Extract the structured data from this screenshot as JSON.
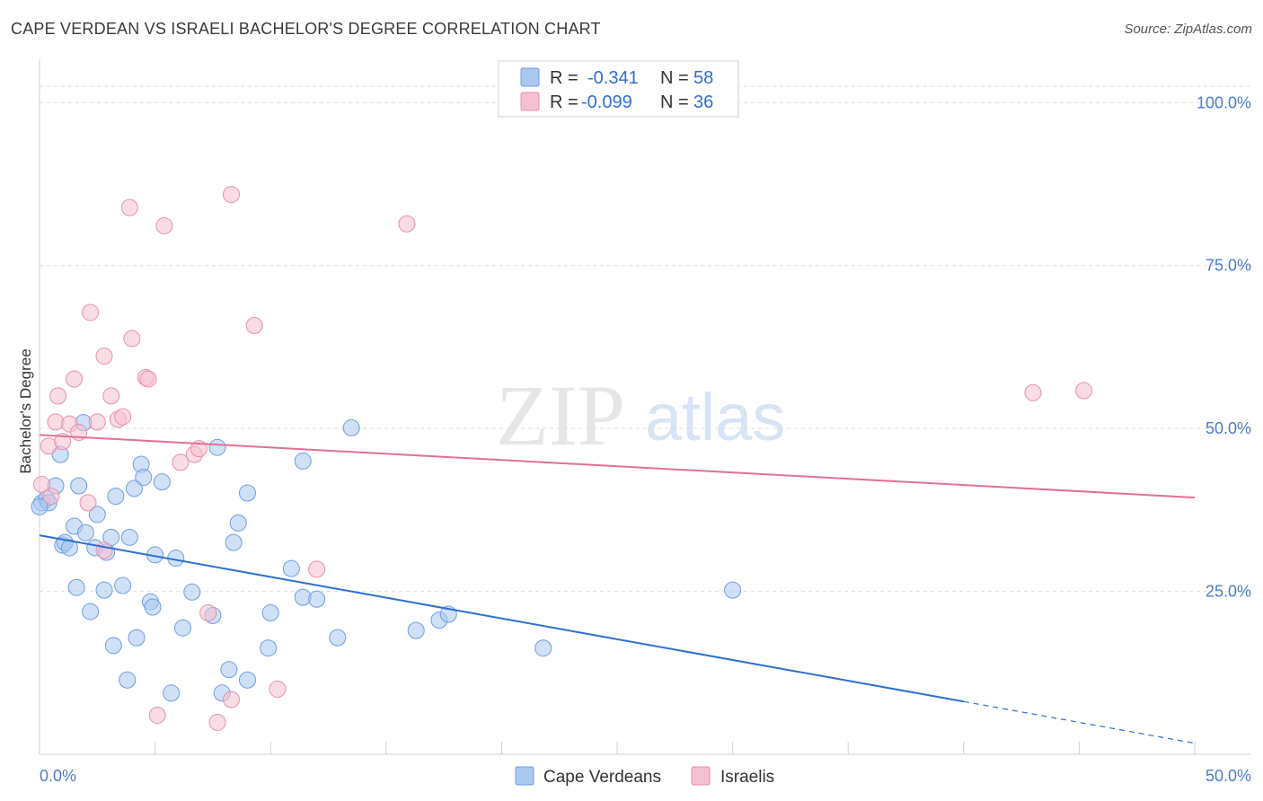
{
  "header": {
    "title": "CAPE VERDEAN VS ISRAELI BACHELOR'S DEGREE CORRELATION CHART",
    "source": "Source: ZipAtlas.com"
  },
  "watermark": {
    "zip": "ZIP",
    "atlas": "atlas"
  },
  "legend": {
    "rows": [
      {
        "r_label": "R =",
        "r_value": "-0.341",
        "n_label": "N =",
        "n_value": "58",
        "color": "#a9c8f0",
        "border": "#6f9de0"
      },
      {
        "r_label": "R =",
        "r_value": "-0.099",
        "n_label": "N =",
        "n_value": "36",
        "color": "#f6c0d0",
        "border": "#e890aa"
      }
    ]
  },
  "bottom_legend": {
    "items": [
      {
        "label": "Cape Verdeans",
        "color": "#a9c8f0",
        "border": "#6f9de0"
      },
      {
        "label": "Israelis",
        "color": "#f6c0d0",
        "border": "#e890aa"
      }
    ]
  },
  "chart_data": {
    "type": "scatter",
    "title": "CAPE VERDEAN VS ISRAELI BACHELOR'S DEGREE CORRELATION CHART",
    "xlabel": "",
    "ylabel": "Bachelor's Degree",
    "xlim": [
      0,
      50
    ],
    "ylim": [
      0,
      105
    ],
    "x_tick_labels": [
      "0.0%",
      "50.0%"
    ],
    "y_ticks": [
      25,
      50,
      75,
      100
    ],
    "y_tick_labels": [
      "25.0%",
      "50.0%",
      "75.0%",
      "100.0%"
    ],
    "grid": "horizontal dashed",
    "series": [
      {
        "name": "Cape Verdeans",
        "color": "#6f9de0",
        "fill": "#a9c8f0",
        "trend": {
          "x0": 0,
          "y0": 33.6,
          "x1": 40,
          "y1": 8.1,
          "dashed_to_x": 50,
          "dashed_to_y": 1.7,
          "color": "#2d6fd1"
        },
        "points": [
          [
            0.1,
            38.6
          ],
          [
            0.3,
            39.2
          ],
          [
            0.4,
            38.6
          ],
          [
            0.7,
            41.2
          ],
          [
            0.9,
            46.0
          ],
          [
            1.0,
            32.1
          ],
          [
            1.1,
            32.5
          ],
          [
            1.3,
            31.7
          ],
          [
            1.5,
            35.0
          ],
          [
            1.6,
            25.6
          ],
          [
            1.7,
            41.2
          ],
          [
            1.9,
            50.9
          ],
          [
            2.0,
            34.0
          ],
          [
            2.2,
            21.9
          ],
          [
            2.4,
            31.7
          ],
          [
            2.5,
            36.8
          ],
          [
            2.8,
            25.2
          ],
          [
            2.9,
            31.0
          ],
          [
            3.1,
            33.3
          ],
          [
            3.2,
            16.7
          ],
          [
            3.3,
            39.6
          ],
          [
            3.6,
            25.9
          ],
          [
            3.8,
            11.4
          ],
          [
            3.9,
            33.3
          ],
          [
            4.1,
            40.8
          ],
          [
            4.2,
            17.9
          ],
          [
            4.4,
            44.5
          ],
          [
            4.5,
            42.5
          ],
          [
            4.8,
            23.4
          ],
          [
            4.9,
            22.6
          ],
          [
            5.0,
            30.6
          ],
          [
            5.3,
            41.8
          ],
          [
            5.7,
            9.4
          ],
          [
            5.9,
            30.1
          ],
          [
            6.2,
            19.4
          ],
          [
            6.6,
            24.9
          ],
          [
            7.5,
            21.3
          ],
          [
            7.7,
            47.1
          ],
          [
            7.9,
            9.4
          ],
          [
            8.2,
            13.0
          ],
          [
            8.4,
            32.5
          ],
          [
            8.6,
            35.5
          ],
          [
            9.0,
            40.1
          ],
          [
            9.0,
            11.4
          ],
          [
            9.9,
            16.3
          ],
          [
            10.0,
            21.7
          ],
          [
            10.9,
            28.5
          ],
          [
            11.4,
            45.0
          ],
          [
            11.4,
            24.1
          ],
          [
            12.0,
            23.8
          ],
          [
            12.9,
            17.9
          ],
          [
            13.5,
            50.1
          ],
          [
            16.3,
            19.0
          ],
          [
            17.3,
            20.6
          ],
          [
            17.7,
            21.5
          ],
          [
            21.8,
            16.3
          ],
          [
            30.0,
            25.2
          ],
          [
            0.0,
            38.0
          ]
        ]
      },
      {
        "name": "Israelis",
        "color": "#e890aa",
        "fill": "#f6c0d0",
        "trend": {
          "x0": 0,
          "y0": 49.0,
          "x1": 50,
          "y1": 39.4,
          "color": "#e36f96"
        },
        "points": [
          [
            0.1,
            41.4
          ],
          [
            0.4,
            47.3
          ],
          [
            0.5,
            39.6
          ],
          [
            0.7,
            51.0
          ],
          [
            0.8,
            55.0
          ],
          [
            1.0,
            48.0
          ],
          [
            1.3,
            50.7
          ],
          [
            1.5,
            57.6
          ],
          [
            1.7,
            49.4
          ],
          [
            2.1,
            38.6
          ],
          [
            2.2,
            67.8
          ],
          [
            2.5,
            51.0
          ],
          [
            2.8,
            31.3
          ],
          [
            2.8,
            61.1
          ],
          [
            3.1,
            55.0
          ],
          [
            3.4,
            51.4
          ],
          [
            3.6,
            51.8
          ],
          [
            3.9,
            83.9
          ],
          [
            4.0,
            63.8
          ],
          [
            4.6,
            57.8
          ],
          [
            4.7,
            57.6
          ],
          [
            5.1,
            6.0
          ],
          [
            5.4,
            81.1
          ],
          [
            6.1,
            44.8
          ],
          [
            6.7,
            46.0
          ],
          [
            6.9,
            46.9
          ],
          [
            7.3,
            21.7
          ],
          [
            7.7,
            4.9
          ],
          [
            8.3,
            8.4
          ],
          [
            8.3,
            85.9
          ],
          [
            9.3,
            65.8
          ],
          [
            10.3,
            10.0
          ],
          [
            12.0,
            28.4
          ],
          [
            15.9,
            81.4
          ],
          [
            43.0,
            55.5
          ],
          [
            45.2,
            55.8
          ]
        ]
      }
    ]
  }
}
